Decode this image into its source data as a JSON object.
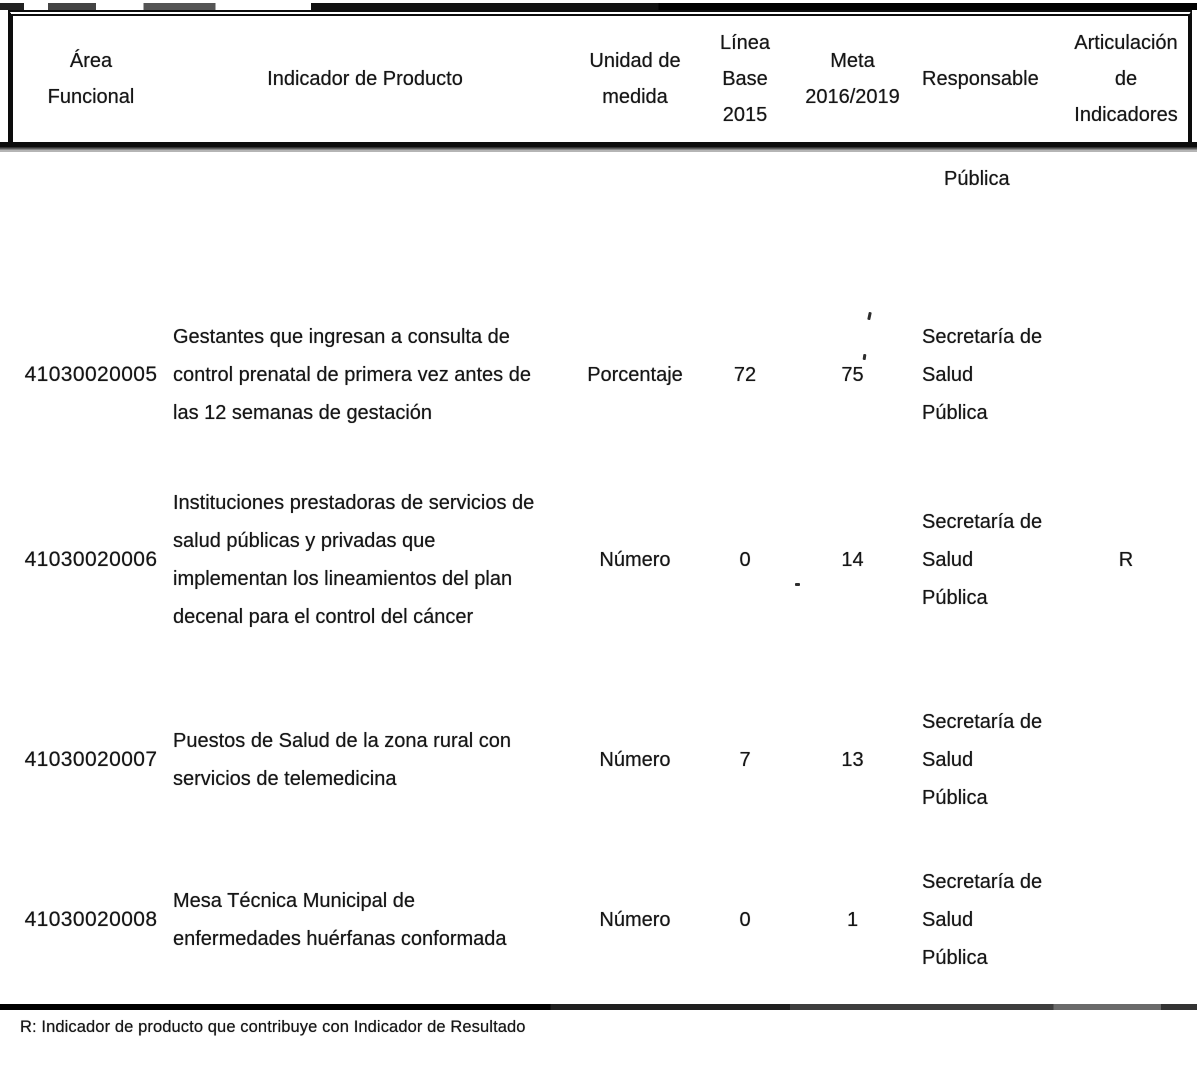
{
  "table": {
    "headers": {
      "area": "Área\nFuncional",
      "indicator": "Indicador de Producto",
      "unit": "Unidad de\nmedida",
      "baseline": "Línea\nBase\n2015",
      "target": "Meta\n2016/2019",
      "responsible": "Responsable",
      "articulation": "Articulación\nde\nIndicadores"
    },
    "carryover_responsible_continuation": "Pública",
    "rows": [
      {
        "id": "41030020005",
        "indicator": "Gestantes que ingresan a consulta de\ncontrol prenatal de primera vez antes de\nlas 12 semanas de gestación",
        "unit": "Porcentaje",
        "baseline": "72",
        "target": "75",
        "responsible": "Secretaría de\nSalud\nPública",
        "articulation": ""
      },
      {
        "id": "41030020006",
        "indicator": "Instituciones prestadoras de servicios de\nsalud públicas y privadas que\nimplementan los lineamientos del plan\ndecenal para el control del cáncer",
        "unit": "Número",
        "baseline": "0",
        "target": "14",
        "responsible": "Secretaría de\nSalud\nPública",
        "articulation": "R"
      },
      {
        "id": "41030020007",
        "indicator": "Puestos de Salud de la zona rural con\nservicios de telemedicina",
        "unit": "Número",
        "baseline": "7",
        "target": "13",
        "responsible": "Secretaría de\nSalud\nPública",
        "articulation": ""
      },
      {
        "id": "41030020008",
        "indicator": "Mesa Técnica Municipal de\nenfermedades huérfanas conformada",
        "unit": "Número",
        "baseline": "0",
        "target": "1",
        "responsible": "Secretaría de\nSalud\nPública",
        "articulation": ""
      }
    ]
  },
  "footnote": "R: Indicador de producto que contribuye con Indicador de Resultado"
}
